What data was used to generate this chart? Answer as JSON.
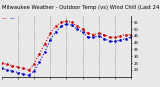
{
  "title": "Milwaukee Weather - Outdoor Temp (vs) Wind Chill (Last 24 Hours)",
  "title_fontsize": 3.8,
  "background_color": "#e8e8e8",
  "plot_bg_color": "#e8e8e8",
  "grid_color": "#555555",
  "x_values": [
    0,
    1,
    2,
    3,
    4,
    5,
    6,
    7,
    8,
    9,
    10,
    11,
    12,
    13,
    14,
    15,
    16,
    17,
    18,
    19,
    20,
    21,
    22,
    23,
    24
  ],
  "temp_values": [
    25,
    24,
    23,
    22,
    21,
    20,
    24,
    32,
    39,
    47,
    52,
    55,
    56,
    55,
    52,
    50,
    47,
    46,
    47,
    46,
    44,
    44,
    45,
    46,
    46
  ],
  "windchill_values": [
    21,
    20,
    19,
    18,
    17,
    16,
    19,
    26,
    33,
    42,
    48,
    52,
    54,
    53,
    50,
    48,
    44,
    44,
    45,
    43,
    41,
    41,
    42,
    43,
    44
  ],
  "temp_color": "#cc0000",
  "windchill_color": "#0000cc",
  "ylim": [
    15,
    60
  ],
  "yticks": [
    20,
    25,
    30,
    35,
    40,
    45,
    50,
    55
  ],
  "ytick_labels": [
    "20",
    "25",
    "30",
    "35",
    "40",
    "45",
    "50",
    "55"
  ],
  "xtick_positions": [
    0,
    3,
    6,
    9,
    12,
    15,
    18,
    21,
    24
  ],
  "xtick_labels": [
    "",
    "",
    "",
    "",
    "",
    "",
    "",
    "",
    ""
  ],
  "vgrid_positions": [
    3,
    6,
    9,
    12,
    15,
    18,
    21
  ]
}
